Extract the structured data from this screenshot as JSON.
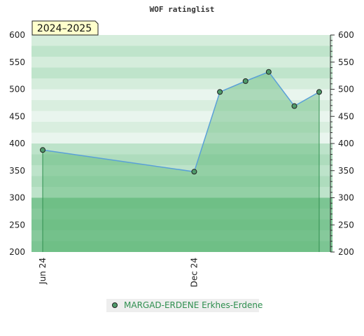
{
  "chart_data": {
    "type": "area",
    "title": "WOF ratinglist",
    "season_label": "2024–2025",
    "ylim": [
      200,
      600
    ],
    "y_ticks": [
      200,
      250,
      300,
      350,
      400,
      450,
      500,
      550,
      600
    ],
    "x_ticks": [
      {
        "label": "Jun 24",
        "date": "2024-06-01"
      },
      {
        "label": "Dec 24",
        "date": "2024-12-01"
      }
    ],
    "xlim": [
      "2024-05-01",
      "2025-05-01"
    ],
    "series": [
      {
        "name": "MARGAD-ERDENE Erkhes-Erdene",
        "color": "#5aa0d8",
        "marker_color": "#4f9a6a",
        "fill_color": "#5fb878",
        "points": [
          {
            "date": "2024-06-01",
            "value": 388
          },
          {
            "date": "2024-12-01",
            "value": 348
          },
          {
            "date": "2025-01-01",
            "value": 495
          },
          {
            "date": "2025-02-01",
            "value": 515
          },
          {
            "date": "2025-03-01",
            "value": 532
          },
          {
            "date": "2025-04-01",
            "value": 469
          },
          {
            "date": "2025-05-01",
            "value": 495
          }
        ]
      }
    ]
  }
}
